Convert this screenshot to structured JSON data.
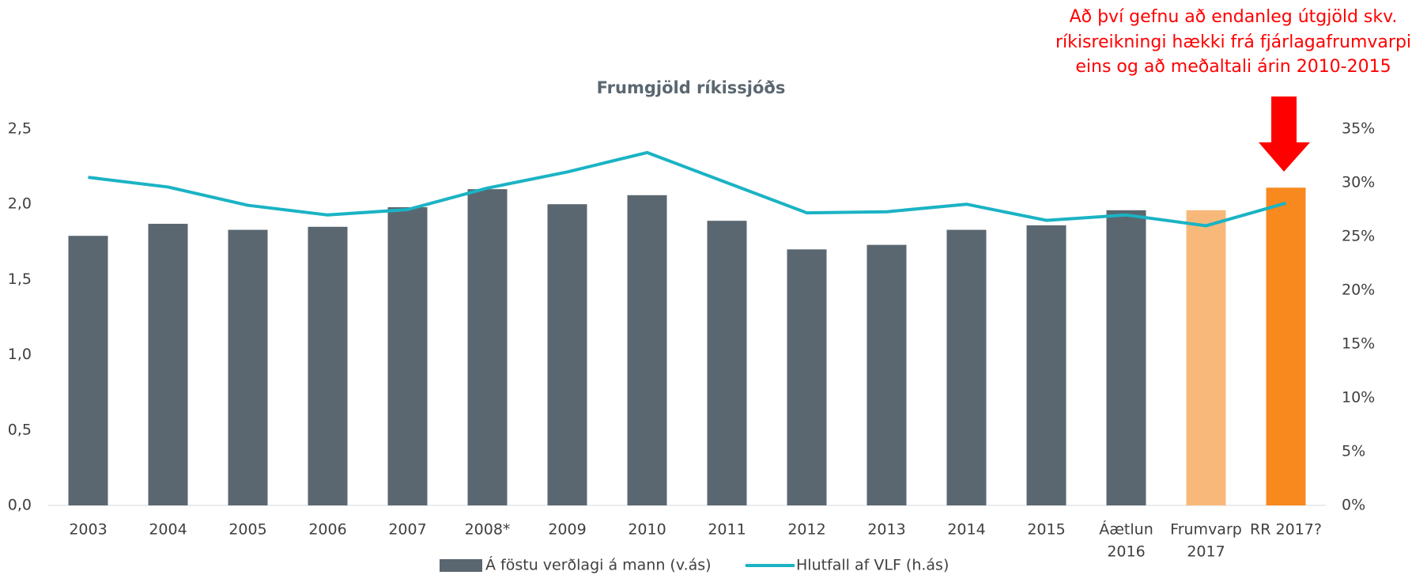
{
  "chart_data": {
    "type": "bar_line",
    "title": "Frumgjöld ríkissjóðs",
    "annotation": [
      "Að því gefnu að endanleg útgjöld skv.",
      "ríkisreikningi hækki frá fjárlagafrumvarpi",
      "eins og að meðaltali árin 2010-2015"
    ],
    "categories": [
      [
        "2003"
      ],
      [
        "2004"
      ],
      [
        "2005"
      ],
      [
        "2006"
      ],
      [
        "2007"
      ],
      [
        "2008*"
      ],
      [
        "2009"
      ],
      [
        "2010"
      ],
      [
        "2011"
      ],
      [
        "2012"
      ],
      [
        "2013"
      ],
      [
        "2014"
      ],
      [
        "2015"
      ],
      [
        "Áætlun",
        "2016"
      ],
      [
        "Frumvarp",
        "2017"
      ],
      [
        "RR 2017?"
      ]
    ],
    "series": [
      {
        "name": "Á föstu verðlagi á mann (v.ás)",
        "type": "bar",
        "color": "#5a6770",
        "colors": [
          "#5a6770",
          "#5a6770",
          "#5a6770",
          "#5a6770",
          "#5a6770",
          "#5a6770",
          "#5a6770",
          "#5a6770",
          "#5a6770",
          "#5a6770",
          "#5a6770",
          "#5a6770",
          "#5a6770",
          "#5a6770",
          "#f8b87a",
          "#f7891f"
        ],
        "values": [
          1.79,
          1.87,
          1.83,
          1.85,
          1.98,
          2.1,
          2.0,
          2.06,
          1.89,
          1.7,
          1.73,
          1.83,
          1.86,
          1.96,
          1.96,
          2.11
        ]
      },
      {
        "name": "Hlutfall af VLF (h.ás)",
        "type": "line",
        "axis": "y2",
        "color": "#1ab3c4",
        "values": [
          30.5,
          29.6,
          27.9,
          27.0,
          27.5,
          29.5,
          31.0,
          32.8,
          30.0,
          27.2,
          27.3,
          28.0,
          26.5,
          27.0,
          26.0,
          28.1
        ]
      }
    ],
    "ylim": [
      0,
      2.5
    ],
    "yticks": [
      {
        "value": 0,
        "label": "0,0"
      },
      {
        "value": 0.5,
        "label": "0,5"
      },
      {
        "value": 1,
        "label": "1,0"
      },
      {
        "value": 1.5,
        "label": "1,5"
      },
      {
        "value": 2,
        "label": "2,0"
      },
      {
        "value": 2.5,
        "label": "2,5"
      }
    ],
    "y2lim": [
      0,
      35
    ],
    "y2ticks": [
      {
        "value": 0,
        "label": "0%"
      },
      {
        "value": 5,
        "label": "5%"
      },
      {
        "value": 10,
        "label": "10%"
      },
      {
        "value": 15,
        "label": "15%"
      },
      {
        "value": 20,
        "label": "20%"
      },
      {
        "value": 25,
        "label": "25%"
      },
      {
        "value": 30,
        "label": "30%"
      },
      {
        "value": 35,
        "label": "35%"
      }
    ],
    "legend": "bottom"
  }
}
